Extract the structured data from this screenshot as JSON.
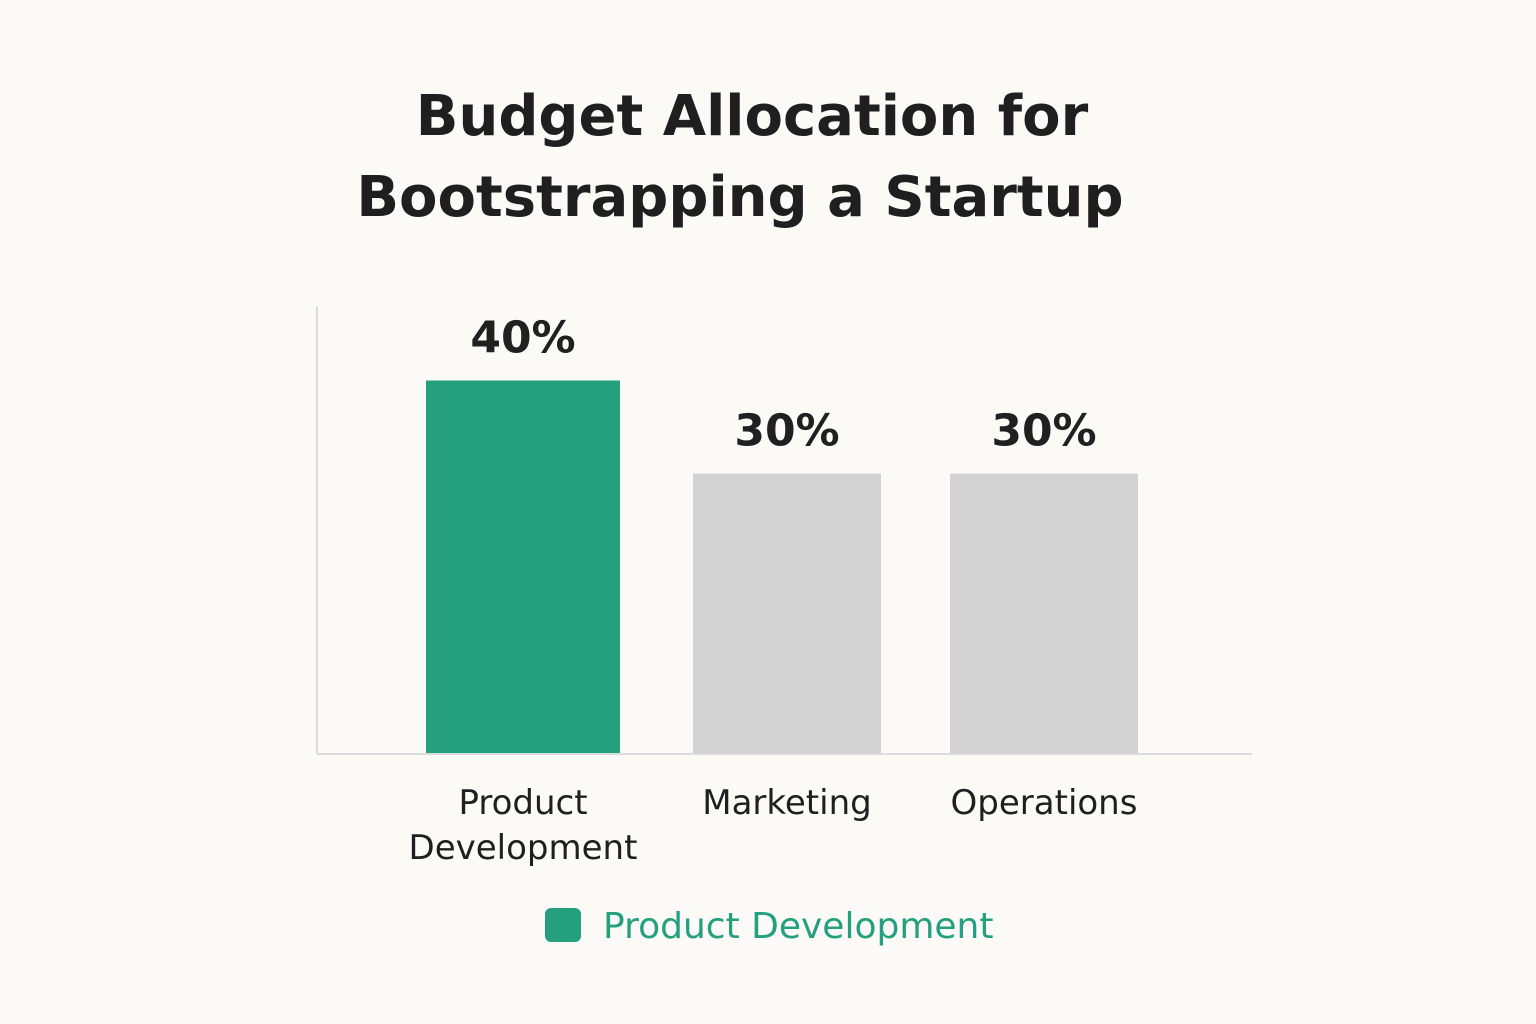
{
  "chart_data": {
    "type": "bar",
    "title": "Budget Allocation for Bootstrapping a Startup",
    "title_lines": [
      "Budget Allocation for",
      "Bootstrapping a Startup"
    ],
    "categories": [
      "Product Development",
      "Marketing",
      "Operations"
    ],
    "category_label_lines": [
      [
        "Product",
        "Development"
      ],
      [
        "Marketing"
      ],
      [
        "Operations"
      ]
    ],
    "values": [
      40,
      30,
      30
    ],
    "value_labels": [
      "40%",
      "30%",
      "30%"
    ],
    "unit": "%",
    "ylim": [
      0,
      48
    ],
    "grid": false,
    "legend": {
      "position": "bottom-center",
      "entries": [
        {
          "label": "Product Development",
          "color": "#24a07f"
        }
      ]
    },
    "colors": {
      "highlight": "#24a07f",
      "default": "#d2d2d2",
      "axis": "#dcdcdc"
    },
    "highlight_index": 0
  }
}
